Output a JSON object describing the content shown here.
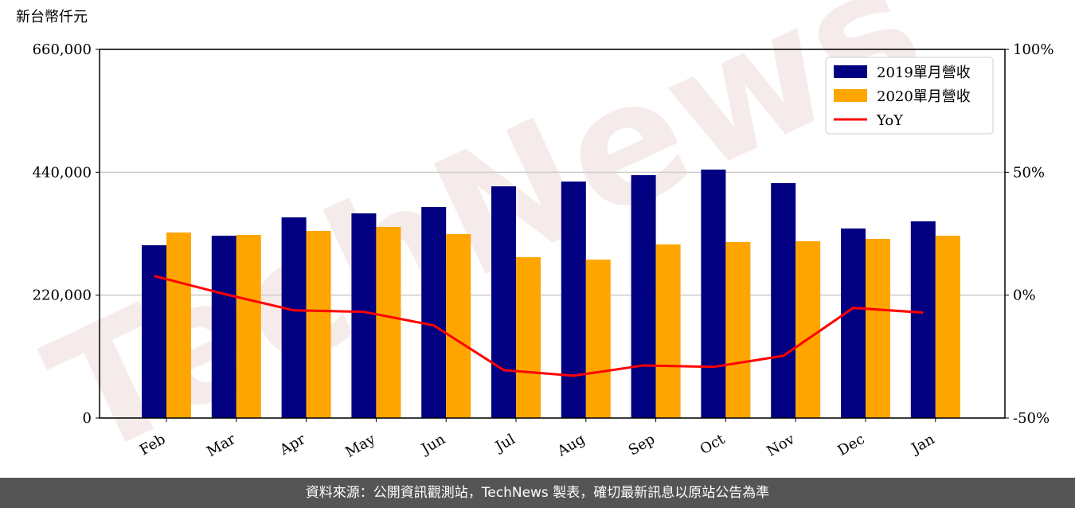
{
  "chart_data": {
    "type": "bar-line",
    "y_label": "新台幣仟元",
    "watermark": "TechNews",
    "categories": [
      "Feb",
      "Mar",
      "Apr",
      "May",
      "Jun",
      "Jul",
      "Aug",
      "Sep",
      "Oct",
      "Nov",
      "Dec",
      "Jan"
    ],
    "series": [
      {
        "name": "2019單月營收",
        "color": "#000080",
        "type": "bar",
        "values": [
          309300,
          326400,
          359200,
          366400,
          377800,
          414800,
          423400,
          434800,
          444800,
          420500,
          339300,
          352100
        ]
      },
      {
        "name": "2020單月營收",
        "color": "#ffa500",
        "type": "bar",
        "values": [
          332100,
          327900,
          335000,
          342100,
          329300,
          288000,
          283700,
          310800,
          315000,
          316500,
          320700,
          326400
        ]
      },
      {
        "name": "YoY",
        "color": "#ff0000",
        "type": "line",
        "axis": "y2",
        "values": [
          7.8,
          0.5,
          -6.2,
          -6.8,
          -12.3,
          -30.5,
          -32.8,
          -28.6,
          -29.2,
          -24.7,
          -5.2,
          -7.1
        ]
      }
    ],
    "ylim": [
      0,
      660000
    ],
    "yticks": [
      {
        "value": 0,
        "label": "0"
      },
      {
        "value": 220000,
        "label": "220,000"
      },
      {
        "value": 440000,
        "label": "440,000"
      },
      {
        "value": 660000,
        "label": "660,000"
      }
    ],
    "y2lim": [
      -50,
      100
    ],
    "y2ticks": [
      {
        "value": -50,
        "label": "-50%"
      },
      {
        "value": 0,
        "label": "0%"
      },
      {
        "value": 50,
        "label": "50%"
      },
      {
        "value": 100,
        "label": "100%"
      }
    ],
    "grid": true,
    "legend": "upper right"
  },
  "footer": "資料來源：公開資訊觀測站，TechNews 製表，確切最新訊息以原站公告為準"
}
